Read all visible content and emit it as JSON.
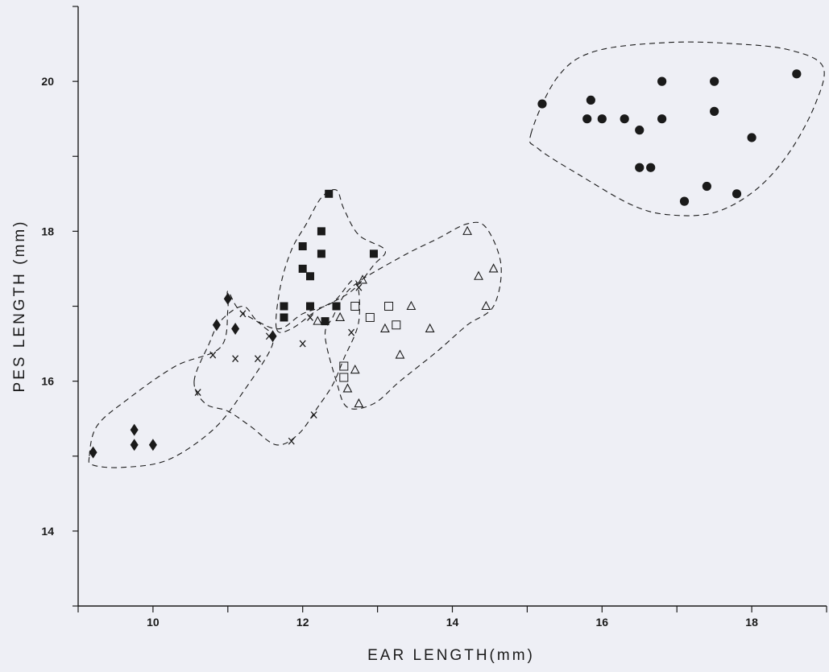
{
  "chart_data": {
    "type": "scatter",
    "title": "",
    "xlabel": "EAR LENGTH(mm)",
    "ylabel": "PES LENGTH (mm)",
    "xlim": [
      9,
      19
    ],
    "ylim": [
      13,
      21
    ],
    "xticks": [
      10,
      12,
      14,
      16,
      18
    ],
    "xtick_labels": [
      "10",
      "12",
      "14",
      "16",
      "18"
    ],
    "yticks": [
      14,
      16,
      18,
      20
    ],
    "ytick_labels": [
      "14",
      "16",
      "18",
      "20"
    ],
    "grid": false,
    "legend": "none",
    "series": [
      {
        "marker": "filled-circle",
        "points": [
          [
            15.2,
            19.7
          ],
          [
            15.8,
            19.5
          ],
          [
            15.85,
            19.75
          ],
          [
            16.0,
            19.5
          ],
          [
            16.3,
            19.5
          ],
          [
            16.5,
            19.35
          ],
          [
            16.5,
            18.85
          ],
          [
            16.65,
            18.85
          ],
          [
            16.8,
            20.0
          ],
          [
            16.8,
            19.5
          ],
          [
            17.1,
            18.4
          ],
          [
            17.4,
            18.6
          ],
          [
            17.5,
            19.6
          ],
          [
            17.5,
            20.0
          ],
          [
            17.8,
            18.5
          ],
          [
            18.0,
            19.25
          ],
          [
            18.6,
            20.1
          ]
        ]
      },
      {
        "marker": "filled-square",
        "points": [
          [
            11.75,
            17.0
          ],
          [
            11.75,
            16.85
          ],
          [
            12.0,
            17.8
          ],
          [
            12.0,
            17.5
          ],
          [
            12.1,
            17.4
          ],
          [
            12.1,
            17.0
          ],
          [
            12.25,
            18.0
          ],
          [
            12.25,
            17.7
          ],
          [
            12.3,
            16.8
          ],
          [
            12.35,
            18.5
          ],
          [
            12.45,
            17.0
          ],
          [
            12.95,
            17.7
          ]
        ]
      },
      {
        "marker": "filled-diamond",
        "points": [
          [
            9.2,
            15.05
          ],
          [
            9.75,
            15.35
          ],
          [
            9.75,
            15.15
          ],
          [
            10.0,
            15.15
          ],
          [
            10.85,
            16.75
          ],
          [
            11.0,
            17.1
          ],
          [
            11.1,
            16.7
          ],
          [
            11.6,
            16.6
          ]
        ]
      },
      {
        "marker": "x-cross",
        "points": [
          [
            10.6,
            15.85
          ],
          [
            10.8,
            16.35
          ],
          [
            11.1,
            16.3
          ],
          [
            11.2,
            16.9
          ],
          [
            11.4,
            16.3
          ],
          [
            11.55,
            16.6
          ],
          [
            11.85,
            15.2
          ],
          [
            12.0,
            16.5
          ],
          [
            12.1,
            16.85
          ],
          [
            12.15,
            15.55
          ],
          [
            12.65,
            16.65
          ],
          [
            12.75,
            17.25
          ]
        ]
      },
      {
        "marker": "open-square",
        "points": [
          [
            12.55,
            16.2
          ],
          [
            12.55,
            16.05
          ],
          [
            12.7,
            17.0
          ],
          [
            12.9,
            16.85
          ],
          [
            13.15,
            17.0
          ],
          [
            13.25,
            16.75
          ]
        ]
      },
      {
        "marker": "open-triangle",
        "points": [
          [
            12.2,
            16.8
          ],
          [
            12.5,
            16.85
          ],
          [
            12.6,
            15.9
          ],
          [
            12.7,
            16.15
          ],
          [
            12.75,
            15.7
          ],
          [
            12.8,
            17.35
          ],
          [
            13.1,
            16.7
          ],
          [
            13.3,
            16.35
          ],
          [
            13.45,
            17.0
          ],
          [
            13.7,
            16.7
          ],
          [
            14.2,
            18.0
          ],
          [
            14.35,
            17.4
          ],
          [
            14.45,
            17.0
          ],
          [
            14.55,
            17.5
          ]
        ]
      }
    ]
  }
}
